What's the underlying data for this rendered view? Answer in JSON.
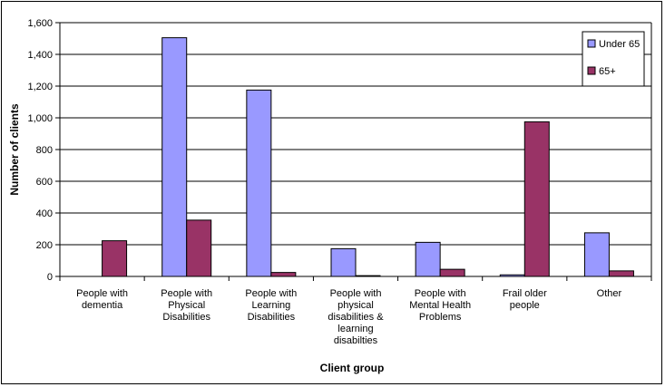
{
  "chart_data": {
    "type": "bar",
    "categories": [
      [
        "People with",
        "dementia"
      ],
      [
        "People with",
        "Physical",
        "Disabilities"
      ],
      [
        "People with",
        "Learning",
        "Disabilities"
      ],
      [
        "People with",
        "physical",
        "disabilities &",
        "learning",
        "disabilties"
      ],
      [
        "People with",
        "Mental Health",
        "Problems"
      ],
      [
        "Frail older",
        "people"
      ],
      [
        "Other"
      ]
    ],
    "series": [
      {
        "name": "Under 65",
        "color": "#9999ff",
        "values": [
          0,
          1505,
          1175,
          175,
          215,
          10,
          275
        ]
      },
      {
        "name": "65+",
        "color": "#993366",
        "values": [
          225,
          355,
          25,
          5,
          45,
          975,
          35
        ]
      }
    ],
    "ylim": [
      0,
      1600
    ],
    "yticks": [
      0,
      200,
      400,
      600,
      800,
      1000,
      1200,
      1400,
      1600
    ],
    "ytick_labels": [
      "0",
      "200",
      "400",
      "600",
      "800",
      "1,000",
      "1,200",
      "1,400",
      "1,600"
    ],
    "xlabel": "Client group",
    "ylabel": "Number of clients",
    "grid": true,
    "legend": "top-right"
  }
}
